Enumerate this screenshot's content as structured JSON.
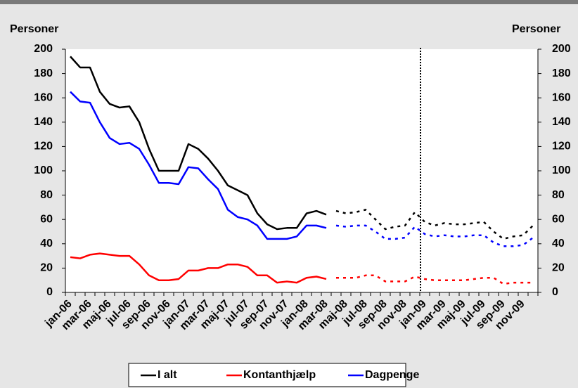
{
  "chart_data": {
    "type": "line",
    "y_label": "Personer",
    "y2_label": "Personer",
    "categories": [
      "jan-06",
      null,
      "mar-06",
      null,
      "maj-06",
      null,
      "jul-06",
      null,
      "sep-06",
      null,
      "nov-06",
      null,
      "jan-07",
      null,
      "mar-07",
      null,
      "maj-07",
      null,
      "jul-07",
      null,
      "sep-07",
      null,
      "nov-07",
      null,
      "jan-08",
      null,
      "mar-08",
      null,
      "maj-08",
      null,
      "jul-08",
      null,
      "sep-08",
      null,
      "nov-08",
      null,
      "jan-09",
      null,
      "mar-09",
      null,
      "maj-09",
      null,
      "jul-09",
      null,
      "sep-09",
      null,
      "nov-09",
      null
    ],
    "series": [
      {
        "name": "I alt",
        "color": "#000000",
        "values": [
          194,
          185,
          185,
          165,
          155,
          152,
          153,
          140,
          118,
          100,
          100,
          100,
          122,
          118,
          110,
          100,
          88,
          84,
          80,
          65,
          56,
          52,
          53,
          53,
          65,
          67,
          64,
          null,
          null,
          null,
          null,
          null,
          null,
          null,
          null,
          null,
          null,
          null,
          null,
          null,
          null,
          null,
          null,
          null,
          null,
          null,
          null,
          null
        ],
        "projected_values": [
          null,
          null,
          null,
          null,
          null,
          null,
          null,
          null,
          null,
          null,
          null,
          null,
          null,
          null,
          null,
          null,
          null,
          null,
          null,
          null,
          null,
          null,
          null,
          null,
          null,
          null,
          null,
          67,
          65,
          66,
          68,
          60,
          52,
          54,
          55,
          66,
          58,
          55,
          57,
          56,
          56,
          57,
          58,
          50,
          44,
          46,
          47,
          55
        ]
      },
      {
        "name": "Kontanthjælp",
        "color": "#ff0000",
        "values": [
          29,
          28,
          31,
          32,
          31,
          30,
          30,
          23,
          14,
          10,
          10,
          11,
          18,
          18,
          20,
          20,
          23,
          23,
          21,
          14,
          14,
          8,
          9,
          8,
          12,
          13,
          11,
          null,
          null,
          null,
          null,
          null,
          null,
          null,
          null,
          null,
          null,
          null,
          null,
          null,
          null,
          null,
          null,
          null,
          null,
          null,
          null,
          null
        ],
        "projected_values": [
          null,
          null,
          null,
          null,
          null,
          null,
          null,
          null,
          null,
          null,
          null,
          null,
          null,
          null,
          null,
          null,
          null,
          null,
          null,
          null,
          null,
          null,
          null,
          null,
          null,
          null,
          null,
          12,
          12,
          12,
          14,
          14,
          9,
          9,
          9,
          13,
          11,
          10,
          10,
          10,
          10,
          11,
          12,
          12,
          7,
          8,
          8,
          8
        ]
      },
      {
        "name": "Dagpenge",
        "color": "#0000ff",
        "values": [
          165,
          157,
          156,
          140,
          127,
          122,
          123,
          118,
          105,
          90,
          90,
          89,
          103,
          102,
          93,
          85,
          68,
          62,
          60,
          55,
          44,
          44,
          44,
          46,
          55,
          55,
          53,
          null,
          null,
          null,
          null,
          null,
          null,
          null,
          null,
          null,
          null,
          null,
          null,
          null,
          null,
          null,
          null,
          null,
          null,
          null,
          null,
          null
        ],
        "projected_values": [
          null,
          null,
          null,
          null,
          null,
          null,
          null,
          null,
          null,
          null,
          null,
          null,
          null,
          null,
          null,
          null,
          null,
          null,
          null,
          null,
          null,
          null,
          null,
          null,
          null,
          null,
          null,
          55,
          54,
          55,
          55,
          50,
          44,
          44,
          45,
          54,
          48,
          46,
          47,
          46,
          46,
          47,
          47,
          41,
          38,
          38,
          39,
          45
        ]
      }
    ],
    "ylim": [
      0,
      200
    ],
    "yticks": [
      0,
      20,
      40,
      60,
      80,
      100,
      120,
      140,
      160,
      180,
      200
    ],
    "y2lim": [
      0,
      200
    ],
    "y2ticks": [
      0,
      20,
      40,
      60,
      80,
      100,
      120,
      140,
      160,
      180,
      200
    ],
    "legend": "bottom"
  }
}
